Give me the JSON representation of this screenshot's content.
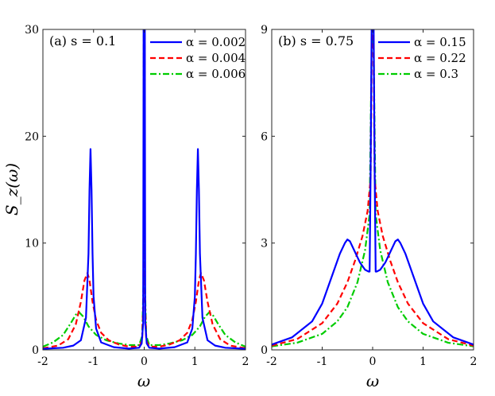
{
  "chart_data": [
    {
      "type": "line",
      "panel": "a",
      "title": "(a) s = 0.1",
      "xlabel": "ω",
      "ylabel": "S_z(ω)",
      "xlim": [
        -2,
        2
      ],
      "ylim": [
        0,
        30
      ],
      "xticks": [
        -2,
        -1,
        0,
        1,
        2
      ],
      "xtick_labels": [
        "-2",
        "-1",
        "0",
        "1",
        "2"
      ],
      "yticks": [
        0,
        10,
        20,
        30
      ],
      "ytick_labels": [
        "0",
        "10",
        "20",
        "30"
      ],
      "legend_position": "top-right",
      "series": [
        {
          "name": "α = 0.002",
          "color": "#0000ff",
          "style": "solid",
          "x": [
            -2.0,
            -1.6,
            -1.4,
            -1.25,
            -1.15,
            -1.1,
            -1.08,
            -1.06,
            -1.04,
            -1.02,
            -1.0,
            -0.95,
            -0.85,
            -0.6,
            -0.3,
            -0.1,
            -0.05,
            -0.02,
            -0.012,
            -0.005,
            0.005,
            0.012,
            0.02,
            0.05,
            0.1,
            0.3,
            0.6,
            0.85,
            0.95,
            1.0,
            1.02,
            1.04,
            1.06,
            1.08,
            1.1,
            1.15,
            1.25,
            1.4,
            1.6,
            2.0
          ],
          "y": [
            0.1,
            0.2,
            0.4,
            0.9,
            3.0,
            9.0,
            15.0,
            18.8,
            15.0,
            9.0,
            5.0,
            2.0,
            0.7,
            0.25,
            0.12,
            0.2,
            0.6,
            2.5,
            30.0,
            30.0,
            30.0,
            30.0,
            2.5,
            0.6,
            0.2,
            0.12,
            0.25,
            0.7,
            2.0,
            5.0,
            9.0,
            15.0,
            18.8,
            15.0,
            9.0,
            3.0,
            0.9,
            0.4,
            0.2,
            0.1
          ]
        },
        {
          "name": "α = 0.004",
          "color": "#ff0000",
          "style": "dashed",
          "x": [
            -2.0,
            -1.7,
            -1.5,
            -1.35,
            -1.25,
            -1.18,
            -1.12,
            -1.08,
            -1.02,
            -0.95,
            -0.85,
            -0.7,
            -0.5,
            -0.3,
            -0.1,
            -0.04,
            -0.015,
            -0.008,
            0.008,
            0.015,
            0.04,
            0.1,
            0.3,
            0.5,
            0.7,
            0.85,
            0.95,
            1.02,
            1.08,
            1.12,
            1.18,
            1.25,
            1.35,
            1.5,
            1.7,
            2.0
          ],
          "y": [
            0.15,
            0.4,
            1.0,
            2.4,
            4.5,
            6.5,
            7.2,
            6.5,
            4.5,
            2.8,
            1.6,
            0.9,
            0.5,
            0.3,
            0.3,
            0.9,
            5.0,
            30.0,
            30.0,
            5.0,
            0.9,
            0.3,
            0.3,
            0.5,
            0.9,
            1.6,
            2.8,
            4.5,
            6.5,
            7.2,
            6.5,
            4.5,
            2.4,
            1.0,
            0.4,
            0.15
          ]
        },
        {
          "name": "α = 0.006",
          "color": "#00cc00",
          "style": "dashdot",
          "x": [
            -2.0,
            -1.8,
            -1.6,
            -1.45,
            -1.35,
            -1.28,
            -1.2,
            -1.1,
            -0.95,
            -0.75,
            -0.5,
            -0.3,
            -0.1,
            -0.04,
            -0.015,
            -0.008,
            0.008,
            0.015,
            0.04,
            0.1,
            0.3,
            0.5,
            0.75,
            0.95,
            1.1,
            1.2,
            1.28,
            1.35,
            1.45,
            1.6,
            1.8,
            2.0
          ],
          "y": [
            0.3,
            0.7,
            1.4,
            2.5,
            3.3,
            3.5,
            3.1,
            2.2,
            1.4,
            0.9,
            0.6,
            0.45,
            0.45,
            1.3,
            6.0,
            30.0,
            30.0,
            6.0,
            1.3,
            0.45,
            0.45,
            0.6,
            0.9,
            1.4,
            2.2,
            3.1,
            3.5,
            3.3,
            2.5,
            1.4,
            0.7,
            0.3
          ]
        }
      ]
    },
    {
      "type": "line",
      "panel": "b",
      "title": "(b) s = 0.75",
      "xlabel": "ω",
      "ylabel": "",
      "xlim": [
        -2,
        2
      ],
      "ylim": [
        0,
        9
      ],
      "xticks": [
        -2,
        -1,
        0,
        1,
        2
      ],
      "xtick_labels": [
        "-2",
        "-1",
        "0",
        "1",
        "2"
      ],
      "yticks": [
        0,
        3,
        6,
        9
      ],
      "ytick_labels": [
        "0",
        "3",
        "6",
        "9"
      ],
      "legend_position": "top-right",
      "series": [
        {
          "name": "α = 0.15",
          "color": "#0000ff",
          "style": "solid",
          "x": [
            -2.0,
            -1.6,
            -1.2,
            -1.0,
            -0.8,
            -0.65,
            -0.55,
            -0.5,
            -0.45,
            -0.35,
            -0.25,
            -0.15,
            -0.08,
            -0.06,
            -0.04,
            -0.02,
            0.02,
            0.04,
            0.06,
            0.08,
            0.15,
            0.25,
            0.35,
            0.45,
            0.5,
            0.55,
            0.65,
            0.8,
            1.0,
            1.2,
            1.6,
            2.0
          ],
          "y": [
            0.15,
            0.35,
            0.8,
            1.3,
            2.1,
            2.7,
            3.0,
            3.1,
            3.05,
            2.75,
            2.45,
            2.25,
            2.2,
            2.2,
            5.0,
            9.0,
            9.0,
            5.0,
            2.2,
            2.2,
            2.25,
            2.45,
            2.75,
            3.05,
            3.1,
            3.0,
            2.7,
            2.1,
            1.3,
            0.8,
            0.35,
            0.15
          ]
        },
        {
          "name": "α = 0.22",
          "color": "#ff0000",
          "style": "dashed",
          "x": [
            -2.0,
            -1.5,
            -1.0,
            -0.7,
            -0.5,
            -0.35,
            -0.2,
            -0.1,
            -0.04,
            -0.015,
            0.015,
            0.04,
            0.1,
            0.2,
            0.35,
            0.5,
            0.7,
            1.0,
            1.5,
            2.0
          ],
          "y": [
            0.12,
            0.3,
            0.75,
            1.3,
            1.9,
            2.5,
            3.2,
            3.9,
            4.8,
            9.0,
            9.0,
            4.8,
            3.9,
            3.2,
            2.5,
            1.9,
            1.3,
            0.75,
            0.3,
            0.12
          ]
        },
        {
          "name": "α = 0.3",
          "color": "#00cc00",
          "style": "dashdot",
          "x": [
            -2.0,
            -1.5,
            -1.0,
            -0.7,
            -0.5,
            -0.3,
            -0.15,
            -0.06,
            -0.015,
            0.015,
            0.06,
            0.15,
            0.3,
            0.5,
            0.7,
            1.0,
            1.5,
            2.0
          ],
          "y": [
            0.1,
            0.2,
            0.45,
            0.8,
            1.2,
            1.9,
            2.8,
            3.8,
            9.0,
            9.0,
            3.8,
            2.8,
            1.9,
            1.2,
            0.8,
            0.45,
            0.2,
            0.1
          ]
        }
      ]
    }
  ]
}
